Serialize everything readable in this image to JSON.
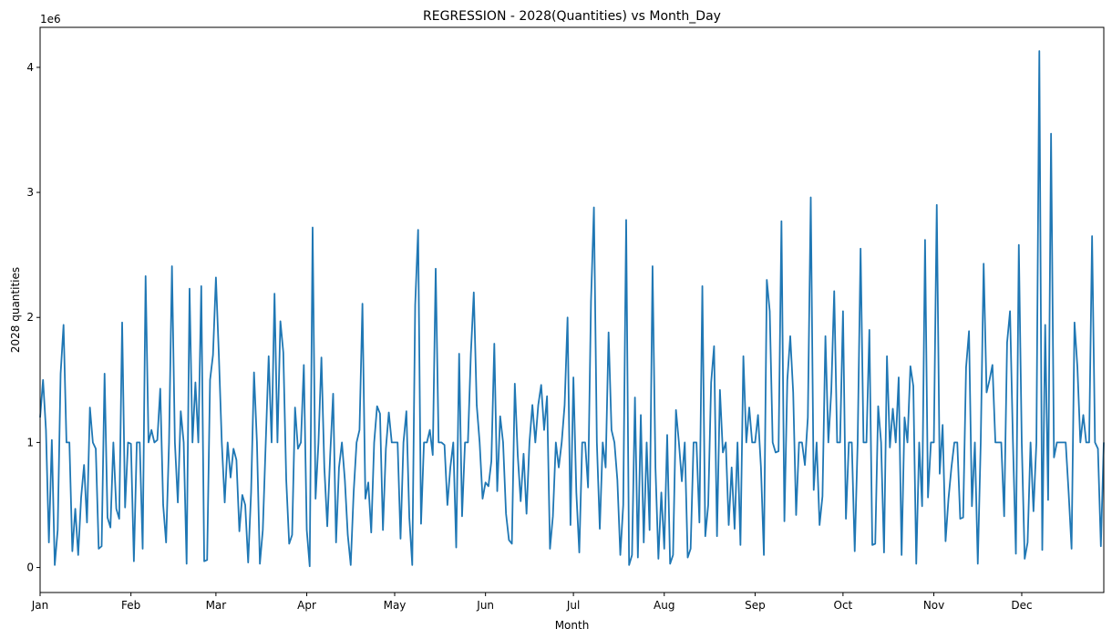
{
  "chart_data": {
    "type": "line",
    "title": "REGRESSION - 2028(Quantities) vs Month_Day",
    "xlabel": "Month",
    "ylabel": "2028 quantities",
    "y_offset_label": "1e6",
    "y_ticks": [
      0,
      1,
      2,
      3,
      4
    ],
    "ylim": [
      -0.2,
      4.32
    ],
    "x_tick_labels": [
      "Jan",
      "Feb",
      "Mar",
      "Apr",
      "May",
      "Jun",
      "Jul",
      "Aug",
      "Sep",
      "Oct",
      "Nov",
      "Dec"
    ],
    "xlim": [
      "Jan 1",
      "Dec 31"
    ],
    "grid": false,
    "series": [
      {
        "color": "#1f77b4",
        "values_unit": "1e6",
        "values": [
          1.2,
          1.5,
          1.1,
          0.2,
          1.02,
          0.02,
          0.3,
          1.55,
          1.94,
          1.0,
          1.0,
          0.13,
          0.47,
          0.1,
          0.56,
          0.82,
          0.36,
          1.28,
          1.0,
          0.95,
          0.15,
          0.17,
          1.55,
          0.4,
          0.32,
          1.0,
          0.47,
          0.39,
          1.96,
          0.48,
          1.0,
          0.99,
          0.05,
          1.0,
          1.0,
          0.15,
          2.33,
          1.0,
          1.1,
          1.0,
          1.02,
          1.43,
          0.5,
          0.2,
          1.0,
          2.41,
          1.0,
          0.52,
          1.25,
          1.0,
          0.03,
          2.23,
          1.0,
          1.48,
          1.0,
          2.25,
          0.05,
          0.06,
          1.5,
          1.7,
          2.32,
          1.7,
          1.0,
          0.52,
          1.0,
          0.72,
          0.95,
          0.86,
          0.29,
          0.58,
          0.5,
          0.04,
          0.6,
          1.56,
          1.0,
          0.03,
          0.3,
          1.0,
          1.69,
          1.0,
          2.19,
          1.0,
          1.97,
          1.72,
          0.7,
          0.19,
          0.26,
          1.28,
          0.95,
          1.0,
          1.62,
          0.3,
          0.01,
          2.72,
          0.55,
          1.0,
          1.68,
          0.8,
          0.33,
          0.9,
          1.39,
          0.2,
          0.8,
          1.0,
          0.7,
          0.26,
          0.02,
          0.6,
          1.0,
          1.1,
          2.11,
          0.55,
          0.68,
          0.28,
          1.0,
          1.29,
          1.23,
          0.3,
          0.95,
          1.24,
          1.0,
          1.0,
          1.0,
          0.23,
          1.0,
          1.25,
          0.4,
          0.02,
          2.1,
          2.7,
          0.35,
          1.0,
          1.0,
          1.1,
          0.9,
          2.39,
          1.0,
          1.0,
          0.98,
          0.5,
          0.8,
          1.0,
          0.16,
          1.71,
          0.41,
          1.0,
          1.0,
          1.71,
          2.2,
          1.3,
          1.0,
          0.55,
          0.68,
          0.65,
          0.85,
          1.79,
          0.61,
          1.21,
          1.0,
          0.43,
          0.22,
          0.19,
          1.47,
          0.9,
          0.53,
          0.91,
          0.43,
          1.0,
          1.3,
          1.0,
          1.3,
          1.46,
          1.1,
          1.37,
          0.15,
          0.41,
          1.0,
          0.8,
          1.0,
          1.3,
          2.0,
          0.34,
          1.52,
          0.6,
          0.12,
          1.0,
          1.0,
          0.64,
          2.13,
          2.88,
          1.0,
          0.31,
          1.0,
          0.8,
          1.88,
          1.1,
          1.0,
          0.7,
          0.1,
          0.5,
          2.78,
          0.02,
          0.1,
          1.36,
          0.08,
          1.22,
          0.2,
          1.0,
          0.3,
          2.41,
          0.8,
          0.07,
          0.6,
          0.15,
          1.06,
          0.03,
          0.1,
          1.26,
          1.0,
          0.69,
          1.0,
          0.08,
          0.15,
          1.0,
          1.0,
          0.36,
          2.25,
          0.25,
          0.5,
          1.48,
          1.77,
          0.25,
          1.42,
          0.92,
          1.0,
          0.34,
          0.8,
          0.31,
          1.0,
          0.18,
          1.69,
          1.0,
          1.28,
          1.0,
          1.0,
          1.22,
          0.8,
          0.1,
          2.3,
          2.05,
          1.0,
          0.92,
          0.93,
          2.77,
          0.37,
          1.5,
          1.85,
          1.4,
          0.42,
          1.0,
          1.0,
          0.82,
          1.2,
          2.96,
          0.62,
          1.0,
          0.34,
          0.57,
          1.85,
          1.0,
          1.41,
          2.21,
          1.0,
          1.0,
          2.05,
          0.39,
          1.0,
          1.0,
          0.13,
          1.0,
          2.55,
          1.0,
          1.0,
          1.9,
          0.18,
          0.19,
          1.29,
          1.0,
          0.12,
          1.69,
          0.96,
          1.27,
          1.0,
          1.52,
          0.1,
          1.2,
          1.0,
          1.61,
          1.45,
          0.03,
          1.0,
          0.49,
          2.62,
          0.56,
          1.0,
          1.0,
          2.9,
          0.75,
          1.14,
          0.21,
          0.55,
          0.8,
          1.0,
          1.0,
          0.39,
          0.4,
          1.6,
          1.89,
          0.49,
          1.0,
          0.03,
          1.0,
          2.43,
          1.4,
          1.5,
          1.62,
          1.0,
          1.0,
          1.0,
          0.41,
          1.8,
          2.05,
          1.0,
          0.11,
          2.58,
          1.0,
          0.07,
          0.2,
          1.0,
          0.45,
          1.0,
          4.13,
          0.14,
          1.94,
          0.54,
          3.47,
          0.88,
          1.0,
          1.0,
          1.0,
          1.0,
          0.6,
          0.15,
          1.96,
          1.6,
          1.0,
          1.22,
          1.0,
          1.0,
          2.65,
          1.0,
          0.95,
          0.17,
          1.0
        ]
      }
    ]
  }
}
